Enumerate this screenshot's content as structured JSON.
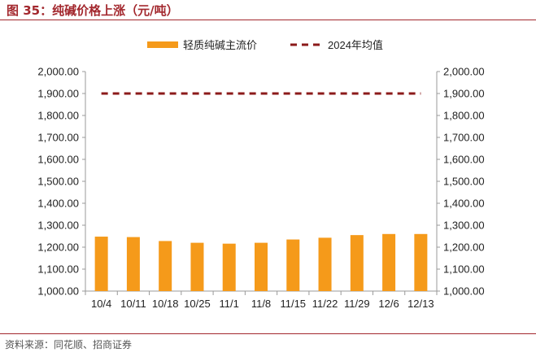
{
  "figure": {
    "title": "图 35：纯碱价格上涨（元/吨）",
    "source": "资料来源：同花顺、招商证券"
  },
  "colors": {
    "title": "#a3282e",
    "bar": "#f59a1a",
    "avg_line": "#8b1a1a",
    "axis": "#999999"
  },
  "chart_data": {
    "type": "bar",
    "categories": [
      "10/4",
      "10/11",
      "10/18",
      "10/25",
      "11/1",
      "11/8",
      "11/15",
      "11/22",
      "11/29",
      "12/6",
      "12/13"
    ],
    "series": [
      {
        "name": "轻质纯碱主流价",
        "type": "bar",
        "values": [
          1248,
          1246,
          1228,
          1220,
          1216,
          1220,
          1235,
          1243,
          1255,
          1260,
          1260
        ]
      },
      {
        "name": "2024年均值",
        "type": "line",
        "style": "dashed",
        "values": [
          1900,
          1900,
          1900,
          1900,
          1900,
          1900,
          1900,
          1900,
          1900,
          1900,
          1900
        ]
      }
    ],
    "y_left": {
      "min": 1000,
      "max": 2000,
      "step": 100,
      "ticks": [
        "1,000.00",
        "1,100.00",
        "1,200.00",
        "1,300.00",
        "1,400.00",
        "1,500.00",
        "1,600.00",
        "1,700.00",
        "1,800.00",
        "1,900.00",
        "2,000.00"
      ]
    },
    "y_right": {
      "min": 1000,
      "max": 2000,
      "step": 100,
      "ticks": [
        "1,000.00",
        "1,100.00",
        "1,200.00",
        "1,300.00",
        "1,400.00",
        "1,500.00",
        "1,600.00",
        "1,700.00",
        "1,800.00",
        "1,900.00",
        "2,000.00"
      ]
    },
    "legend_position": "top-center",
    "grid": false
  }
}
